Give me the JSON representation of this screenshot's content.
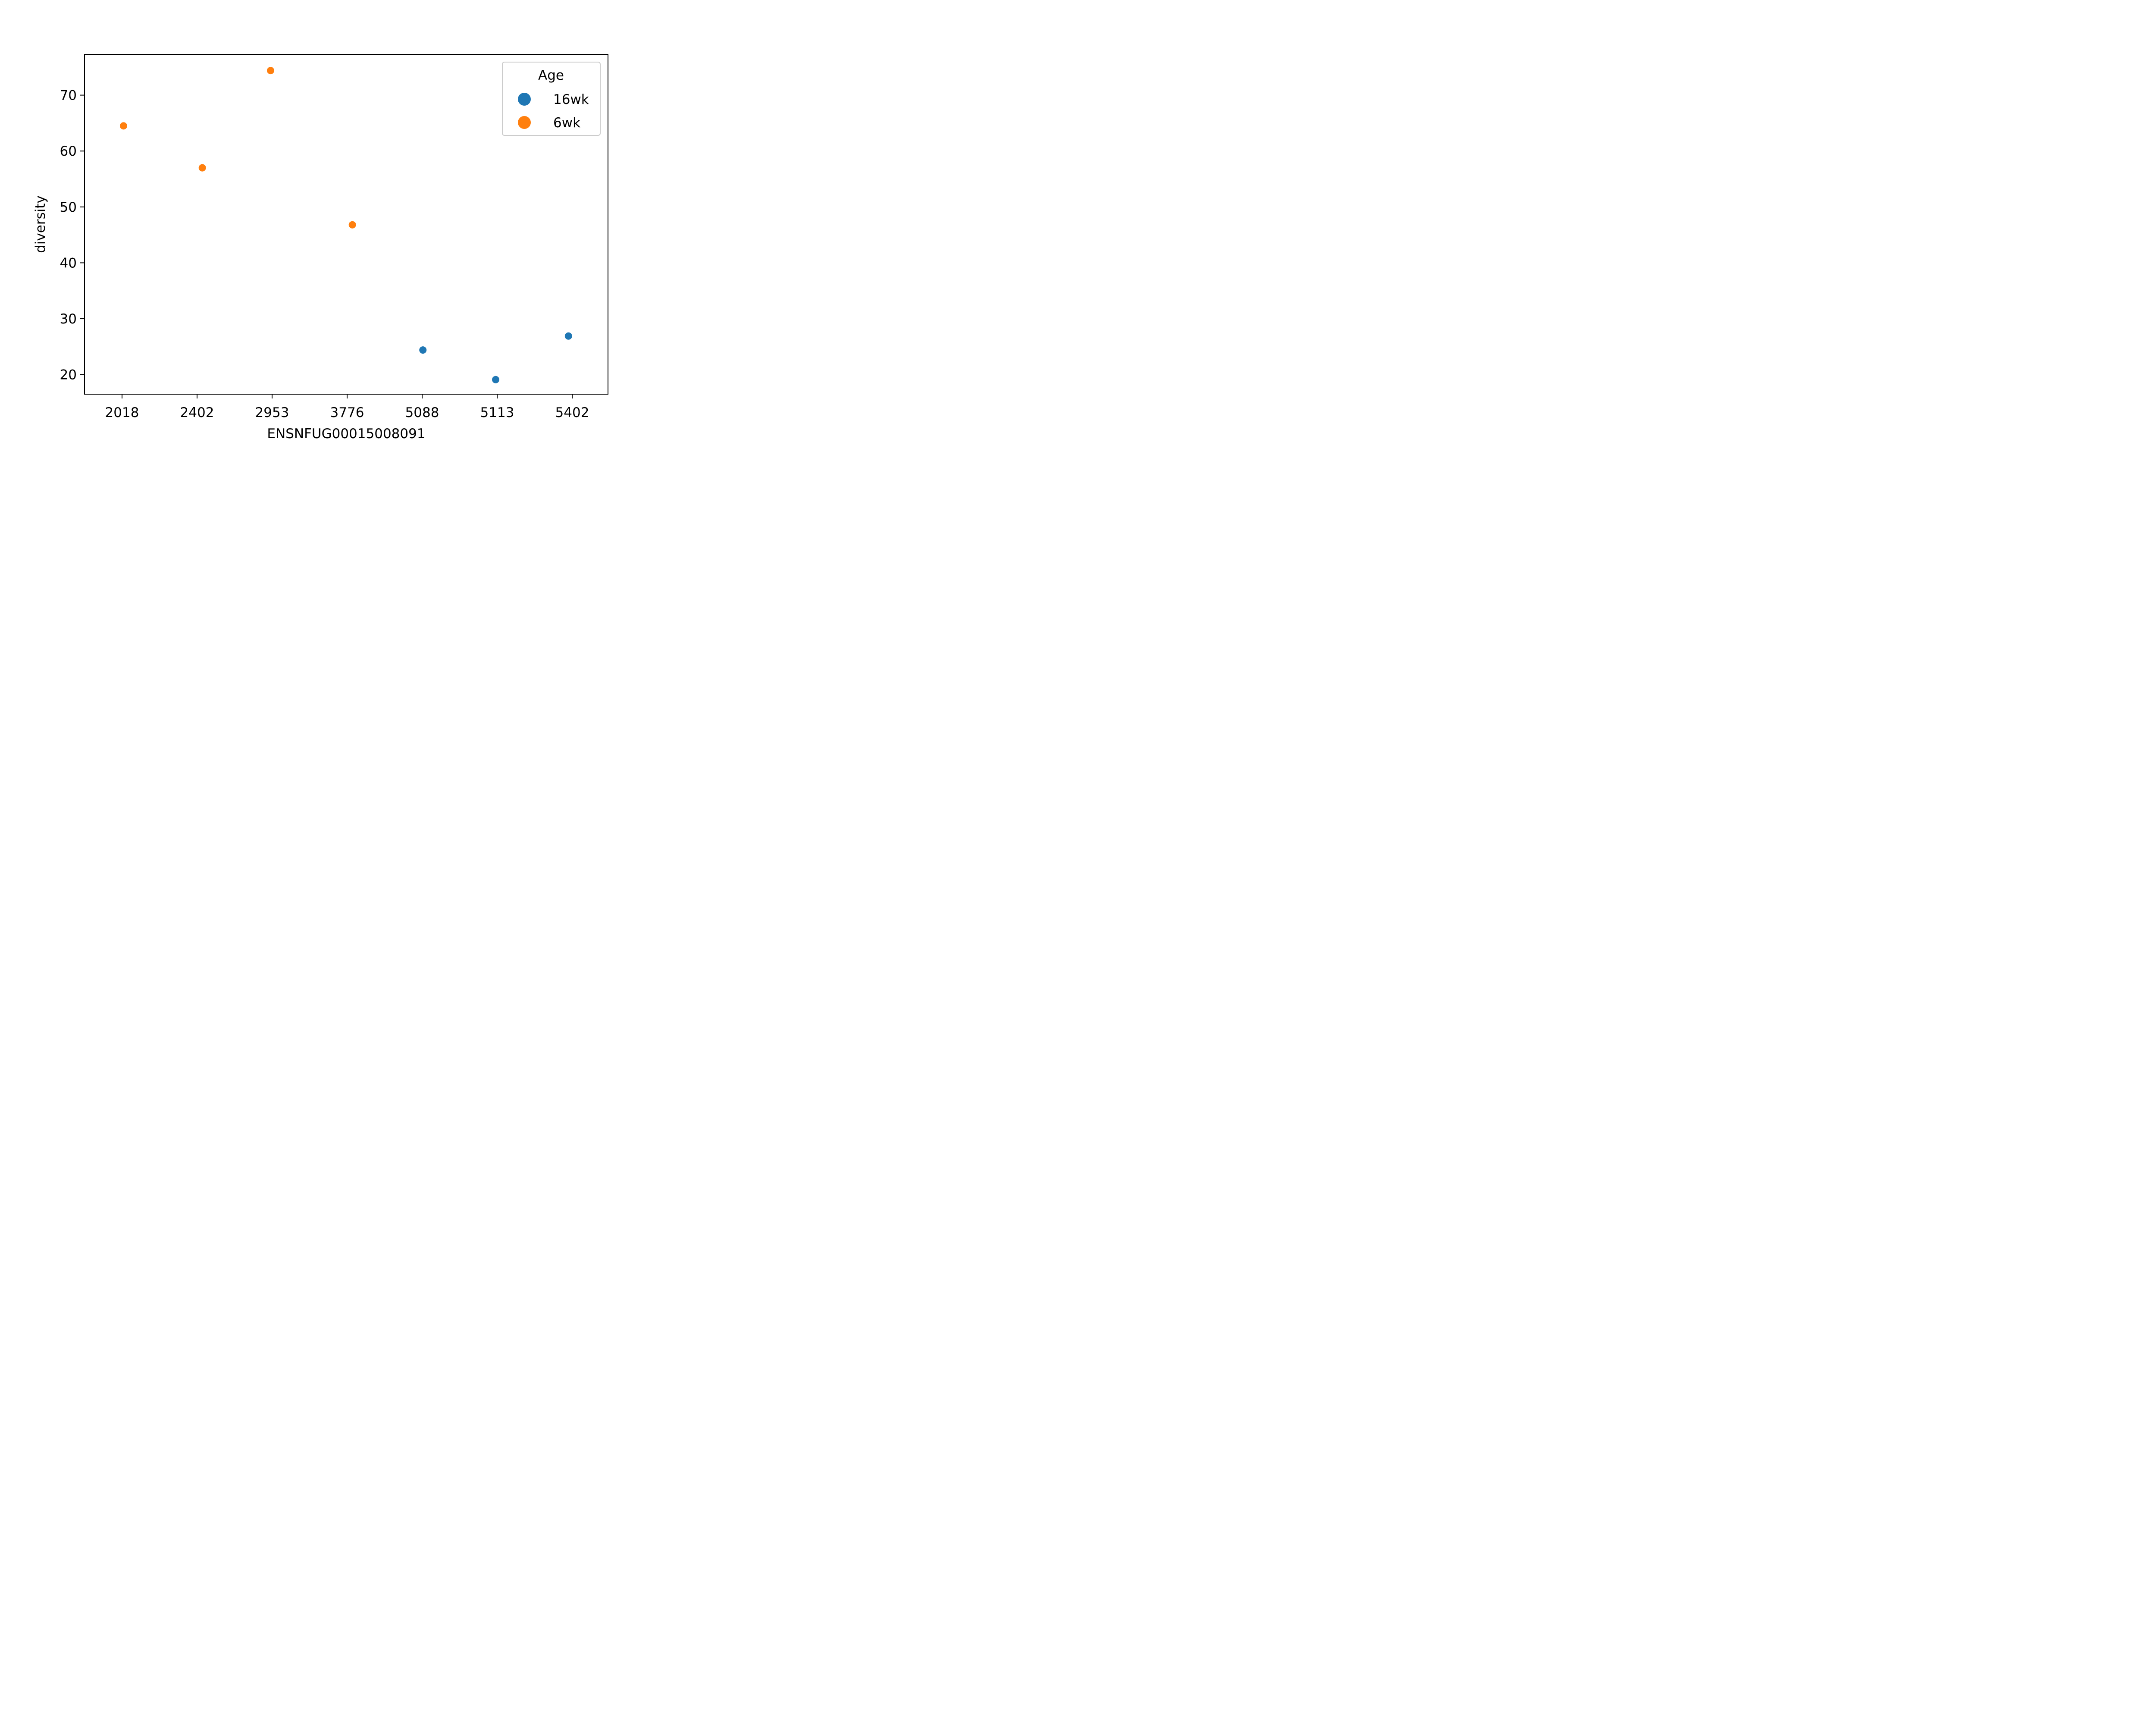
{
  "chart_data": {
    "type": "scatter",
    "title": "",
    "xlabel": "ENSNFUG00015008091",
    "ylabel": "diversity",
    "categories": [
      "2018",
      "2402",
      "2953",
      "3776",
      "5088",
      "5113",
      "5402"
    ],
    "ylim": [
      16.5,
      77.3
    ],
    "yticks": [
      20,
      30,
      40,
      50,
      60,
      70
    ],
    "grid": false,
    "legend": {
      "title": "Age",
      "placement": "top-right",
      "entries": [
        {
          "label": "16wk",
          "color": "#1f77b4"
        },
        {
          "label": "6wk",
          "color": "#ff7f0e"
        }
      ]
    },
    "points": [
      {
        "x": "2018",
        "offset": 0.02,
        "y": 64.5,
        "group": "6wk"
      },
      {
        "x": "2402",
        "offset": 0.07,
        "y": 57.0,
        "group": "6wk"
      },
      {
        "x": "2953",
        "offset": -0.02,
        "y": 74.4,
        "group": "6wk"
      },
      {
        "x": "3776",
        "offset": 0.07,
        "y": 46.8,
        "group": "6wk"
      },
      {
        "x": "5088",
        "offset": 0.01,
        "y": 24.4,
        "group": "16wk"
      },
      {
        "x": "5113",
        "offset": -0.02,
        "y": 19.1,
        "group": "16wk"
      },
      {
        "x": "5402",
        "offset": -0.05,
        "y": 26.9,
        "group": "16wk"
      }
    ]
  }
}
